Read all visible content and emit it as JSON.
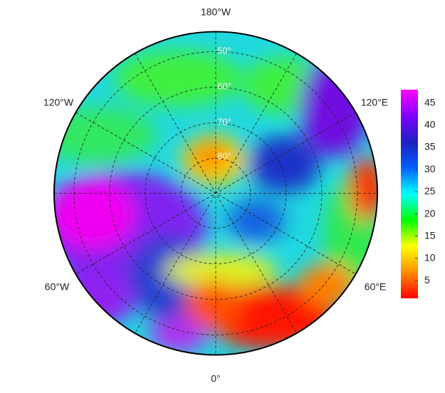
{
  "map": {
    "longitude_labels": [
      "180°W",
      "120°W",
      "120°E",
      "60°W",
      "60°E",
      "0°"
    ],
    "latitude_labels": [
      "50°",
      "60°",
      "70°",
      "80°"
    ],
    "colorbar": {
      "range": [
        1,
        48
      ],
      "ticks": [
        5,
        10,
        15,
        20,
        25,
        30,
        35,
        40,
        45
      ],
      "colors": [
        "#ff0000",
        "#ff8c00",
        "#ffff00",
        "#00ff00",
        "#00ffff",
        "#0060ff",
        "#2020c0",
        "#8000ff",
        "#ff00ff"
      ]
    }
  }
}
